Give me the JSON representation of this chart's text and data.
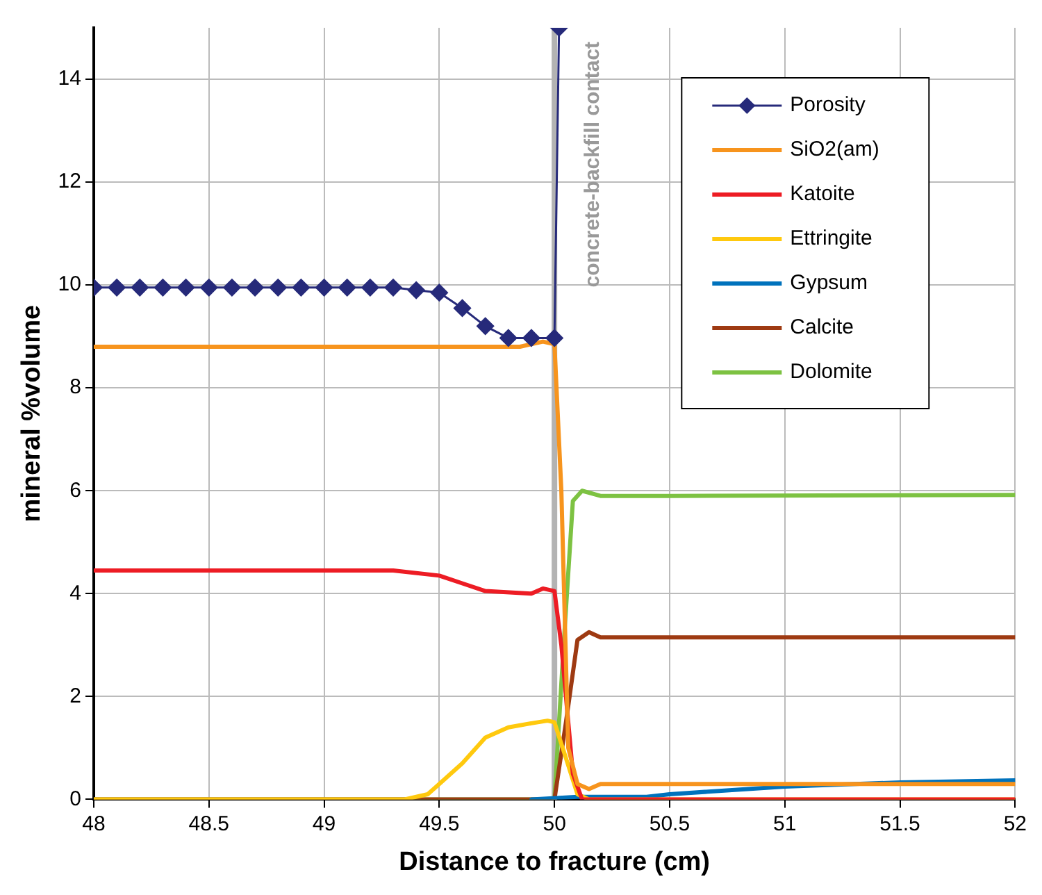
{
  "chart_data": {
    "type": "line",
    "xlabel": "Distance to fracture (cm)",
    "ylabel": "mineral %volume",
    "xlim": [
      48,
      52
    ],
    "xticks": [
      48,
      48.5,
      49,
      49.5,
      50,
      50.5,
      51,
      51.5,
      52
    ],
    "ylim": [
      0,
      15
    ],
    "yticks": [
      0,
      2,
      4,
      6,
      8,
      10,
      12,
      14
    ],
    "grid": true,
    "legend": "top right",
    "line_style": "solid",
    "ref_lines": [
      {
        "axis": "x",
        "value": 50,
        "label": "concrete-backfill contact",
        "color": "#b3b3b3"
      }
    ],
    "series": [
      {
        "name": "Porosity",
        "color": "#262a7a",
        "marker": "diamond",
        "x": [
          48,
          48.1,
          48.2,
          48.3,
          48.4,
          48.5,
          48.6,
          48.7,
          48.8,
          48.9,
          49,
          49.1,
          49.2,
          49.3,
          49.4,
          49.5,
          49.6,
          49.7,
          49.8,
          49.9,
          50,
          50.02
        ],
        "values": [
          9.95,
          9.95,
          9.95,
          9.95,
          9.95,
          9.95,
          9.95,
          9.95,
          9.95,
          9.95,
          9.95,
          9.95,
          9.95,
          9.95,
          9.9,
          9.85,
          9.55,
          9.2,
          8.97,
          8.97,
          8.97,
          15
        ]
      },
      {
        "name": "SiO2(am)",
        "color": "#f7941d",
        "marker": "none",
        "x": [
          48,
          49.85,
          49.95,
          50,
          50.03,
          50.06,
          50.1,
          50.15,
          50.2,
          51,
          52
        ],
        "values": [
          8.8,
          8.8,
          8.9,
          8.85,
          6,
          1,
          0.3,
          0.2,
          0.3,
          0.3,
          0.3
        ]
      },
      {
        "name": "Katoite",
        "color": "#ed1c24",
        "marker": "none",
        "x": [
          48,
          49.3,
          49.5,
          49.6,
          49.7,
          49.9,
          49.95,
          50,
          50.03,
          50.08,
          50.12,
          50.2,
          52
        ],
        "values": [
          4.45,
          4.45,
          4.35,
          4.2,
          4.05,
          4,
          4.1,
          4.05,
          3,
          0.5,
          0,
          0,
          0
        ]
      },
      {
        "name": "Ettringite",
        "color": "#ffc90e",
        "marker": "none",
        "x": [
          48,
          49.35,
          49.45,
          49.5,
          49.6,
          49.7,
          49.8,
          49.9,
          49.97,
          50,
          50.05,
          50.1,
          50.15,
          52
        ],
        "values": [
          0,
          0,
          0.1,
          0.3,
          0.7,
          1.2,
          1.4,
          1.48,
          1.53,
          1.5,
          0.8,
          0.1,
          0,
          0
        ]
      },
      {
        "name": "Gypsum",
        "color": "#0072bc",
        "marker": "none",
        "x": [
          49.9,
          50.1,
          50.4,
          50.5,
          51,
          51.5,
          52
        ],
        "values": [
          0,
          0.05,
          0.05,
          0.1,
          0.25,
          0.33,
          0.37
        ]
      },
      {
        "name": "Calcite",
        "color": "#9e3a12",
        "marker": "none",
        "x": [
          48,
          50,
          50.05,
          50.1,
          50.15,
          50.2,
          52
        ],
        "values": [
          0,
          0,
          1.5,
          3.1,
          3.25,
          3.15,
          3.15
        ]
      },
      {
        "name": "Dolomite",
        "color": "#7dc242",
        "marker": "none",
        "x": [
          48,
          49.9,
          50,
          50.04,
          50.08,
          50.12,
          50.2,
          50.5,
          52
        ],
        "values": [
          0,
          0,
          0,
          3,
          5.8,
          6,
          5.9,
          5.9,
          5.92
        ]
      }
    ]
  }
}
